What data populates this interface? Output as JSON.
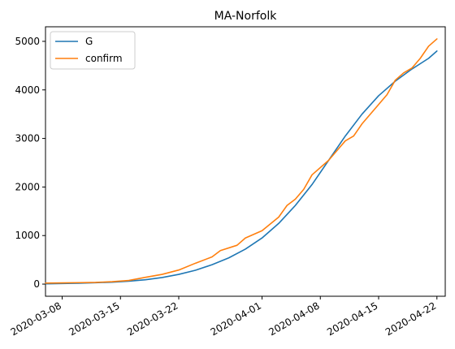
{
  "chart_data": {
    "type": "line",
    "title": "MA-Norfolk",
    "xlabel": "",
    "ylabel": "",
    "x_type": "date",
    "xlim": [
      "2020-03-06",
      "2020-04-23"
    ],
    "ylim": [
      -250,
      5300
    ],
    "grid": false,
    "legend_position": "top-left",
    "x_ticks": [
      "2020-03-08",
      "2020-03-15",
      "2020-03-22",
      "2020-04-01",
      "2020-04-08",
      "2020-04-15",
      "2020-04-22"
    ],
    "y_ticks": [
      0,
      1000,
      2000,
      3000,
      4000,
      5000
    ],
    "series": [
      {
        "name": "G",
        "color": "#1f77b4",
        "points": [
          [
            "2020-03-06",
            5
          ],
          [
            "2020-03-08",
            12
          ],
          [
            "2020-03-10",
            18
          ],
          [
            "2020-03-12",
            28
          ],
          [
            "2020-03-14",
            40
          ],
          [
            "2020-03-16",
            60
          ],
          [
            "2020-03-18",
            90
          ],
          [
            "2020-03-20",
            135
          ],
          [
            "2020-03-22",
            200
          ],
          [
            "2020-03-24",
            285
          ],
          [
            "2020-03-26",
            400
          ],
          [
            "2020-03-28",
            540
          ],
          [
            "2020-03-30",
            720
          ],
          [
            "2020-04-01",
            950
          ],
          [
            "2020-04-03",
            1250
          ],
          [
            "2020-04-05",
            1620
          ],
          [
            "2020-04-07",
            2050
          ],
          [
            "2020-04-09",
            2550
          ],
          [
            "2020-04-11",
            3050
          ],
          [
            "2020-04-13",
            3500
          ],
          [
            "2020-04-15",
            3880
          ],
          [
            "2020-04-17",
            4180
          ],
          [
            "2020-04-19",
            4430
          ],
          [
            "2020-04-21",
            4650
          ],
          [
            "2020-04-22",
            4800
          ]
        ]
      },
      {
        "name": "confirm",
        "color": "#ff7f0e",
        "points": [
          [
            "2020-03-06",
            20
          ],
          [
            "2020-03-08",
            25
          ],
          [
            "2020-03-10",
            30
          ],
          [
            "2020-03-12",
            35
          ],
          [
            "2020-03-14",
            50
          ],
          [
            "2020-03-16",
            75
          ],
          [
            "2020-03-18",
            140
          ],
          [
            "2020-03-20",
            200
          ],
          [
            "2020-03-22",
            290
          ],
          [
            "2020-03-24",
            430
          ],
          [
            "2020-03-26",
            560
          ],
          [
            "2020-03-27",
            690
          ],
          [
            "2020-03-29",
            800
          ],
          [
            "2020-03-30",
            950
          ],
          [
            "2020-04-01",
            1100
          ],
          [
            "2020-04-03",
            1380
          ],
          [
            "2020-04-04",
            1620
          ],
          [
            "2020-04-05",
            1750
          ],
          [
            "2020-04-06",
            1950
          ],
          [
            "2020-04-07",
            2250
          ],
          [
            "2020-04-09",
            2550
          ],
          [
            "2020-04-10",
            2750
          ],
          [
            "2020-04-11",
            2950
          ],
          [
            "2020-04-12",
            3050
          ],
          [
            "2020-04-13",
            3300
          ],
          [
            "2020-04-15",
            3700
          ],
          [
            "2020-04-16",
            3900
          ],
          [
            "2020-04-17",
            4200
          ],
          [
            "2020-04-18",
            4350
          ],
          [
            "2020-04-19",
            4450
          ],
          [
            "2020-04-20",
            4650
          ],
          [
            "2020-04-21",
            4900
          ],
          [
            "2020-04-22",
            5050
          ]
        ]
      }
    ]
  }
}
